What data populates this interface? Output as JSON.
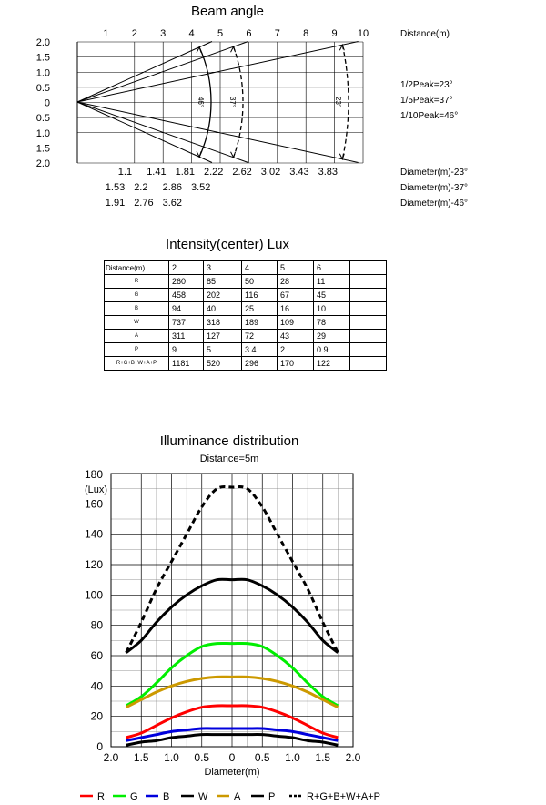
{
  "chart_data": [
    {
      "type": "diagram",
      "title": "Beam angle",
      "xlabel": "Distance(m)",
      "x_ticks": [
        "1",
        "2",
        "3",
        "4",
        "5",
        "6",
        "7",
        "8",
        "9",
        "10"
      ],
      "y_ticks_top": [
        "2.0",
        "1.5",
        "1.0",
        "0.5",
        "0"
      ],
      "y_ticks_bottom": [
        "0.5",
        "1.0",
        "1.5",
        "2.0"
      ],
      "beam_half_angles_deg": [
        23,
        37,
        46
      ],
      "arc_labels": [
        "46°",
        "37°",
        "23°"
      ],
      "peaks": [
        "1/2Peak=23°",
        "1/5Peak=37°",
        "1/10Peak=46°"
      ],
      "diameter_rows": [
        {
          "label": "Diameter(m)-23°",
          "values": [
            "1.1",
            "1.41",
            "1.81",
            "2.22",
            "2.62",
            "3.02",
            "3.43",
            "3.83"
          ]
        },
        {
          "label": "Diameter(m)-37°",
          "values": [
            "1.53",
            "2.2",
            "2.86",
            "3.52"
          ]
        },
        {
          "label": "Diameter(m)-46°",
          "values": [
            "1.91",
            "2.76",
            "3.62"
          ]
        }
      ]
    },
    {
      "type": "table",
      "title": "Intensity(center) Lux",
      "corner": "Distance(m)",
      "columns": [
        "2",
        "3",
        "4",
        "5",
        "6",
        ""
      ],
      "rows": [
        {
          "name": "R",
          "values": [
            "260",
            "85",
            "50",
            "28",
            "11",
            ""
          ]
        },
        {
          "name": "G",
          "values": [
            "458",
            "202",
            "116",
            "67",
            "45",
            ""
          ]
        },
        {
          "name": "B",
          "values": [
            "94",
            "40",
            "25",
            "16",
            "10",
            ""
          ]
        },
        {
          "name": "W",
          "values": [
            "737",
            "318",
            "189",
            "109",
            "78",
            ""
          ]
        },
        {
          "name": "A",
          "values": [
            "311",
            "127",
            "72",
            "43",
            "29",
            ""
          ]
        },
        {
          "name": "P",
          "values": [
            "9",
            "5",
            "3.4",
            "2",
            "0.9",
            ""
          ]
        },
        {
          "name": "R+G+B+W+A+P",
          "values": [
            "1181",
            "520",
            "296",
            "170",
            "122",
            ""
          ]
        }
      ]
    },
    {
      "type": "line",
      "title": "Illuminance distribution",
      "subtitle": "Distance=5m",
      "ylabel": "(Lux)",
      "xlabel": "Diameter(m)",
      "ylim": [
        0,
        180
      ],
      "xlim": [
        -2.0,
        2.0
      ],
      "y_ticks": [
        "0",
        "20",
        "40",
        "60",
        "80",
        "100",
        "120",
        "140",
        "160",
        "180"
      ],
      "x_ticks": [
        "2.0",
        "1.5",
        "1.0",
        "0.5",
        "0",
        "0.5",
        "1.0",
        "1.5",
        "2.0"
      ],
      "x": [
        -1.75,
        -1.5,
        -1.25,
        -1.0,
        -0.75,
        -0.5,
        -0.25,
        0,
        0.25,
        0.5,
        0.75,
        1.0,
        1.25,
        1.5,
        1.75
      ],
      "series": [
        {
          "name": "R",
          "color": "#ff0000",
          "dash": "",
          "values": [
            6,
            9,
            14,
            19,
            23,
            26,
            27,
            27,
            27,
            26,
            23,
            19,
            14,
            9,
            6
          ]
        },
        {
          "name": "G",
          "color": "#00ee00",
          "dash": "",
          "values": [
            27,
            33,
            42,
            52,
            60,
            66,
            68,
            68,
            68,
            66,
            60,
            52,
            42,
            33,
            27
          ]
        },
        {
          "name": "B",
          "color": "#0000dd",
          "dash": "",
          "values": [
            4,
            6,
            8,
            10,
            11,
            12,
            12,
            12,
            12,
            12,
            11,
            10,
            8,
            6,
            4
          ]
        },
        {
          "name": "W",
          "color": "#000000",
          "dash": "",
          "values": [
            62,
            70,
            82,
            92,
            100,
            106,
            110,
            110,
            110,
            106,
            100,
            92,
            82,
            70,
            62
          ]
        },
        {
          "name": "A",
          "color": "#cc9900",
          "dash": "",
          "values": [
            26,
            31,
            36,
            40,
            43,
            45,
            46,
            46,
            46,
            45,
            43,
            40,
            36,
            31,
            26
          ]
        },
        {
          "name": "P",
          "color": "#000000",
          "dash": "",
          "values": [
            1,
            3,
            4,
            6,
            7,
            8,
            8,
            8,
            8,
            8,
            7,
            6,
            4,
            3,
            1
          ]
        },
        {
          "name": "R+G+B+W+A+P",
          "color": "#000000",
          "dash": "6,4",
          "values": [
            62,
            82,
            104,
            122,
            140,
            158,
            170,
            171,
            170,
            158,
            140,
            122,
            104,
            82,
            62
          ]
        }
      ]
    }
  ]
}
